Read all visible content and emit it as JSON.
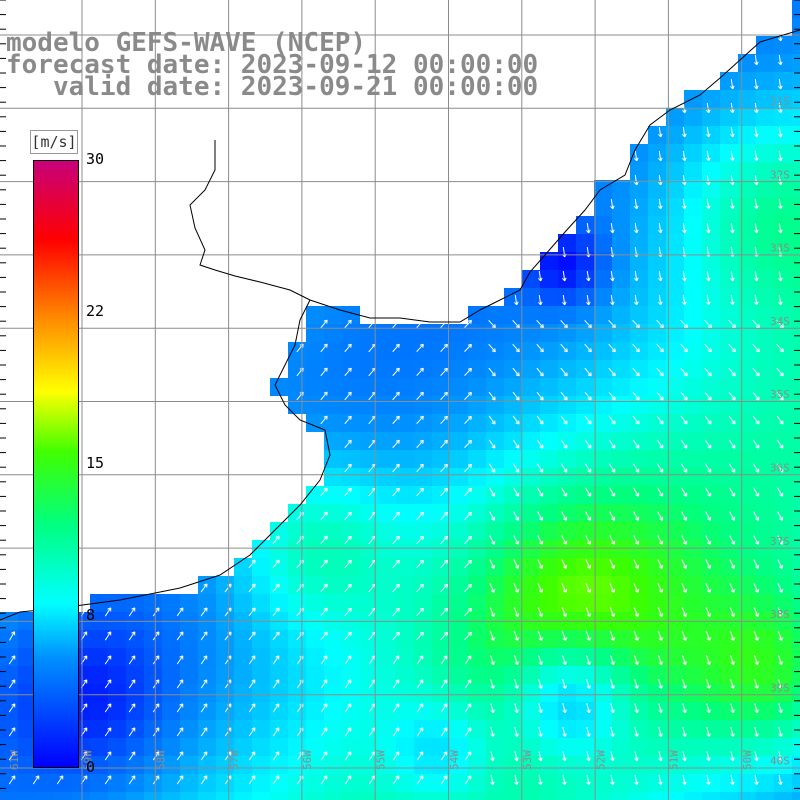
{
  "title": {
    "line1": "modelo GEFS-WAVE (NCEP)",
    "line2": "forecast date: 2023-09-12 00:00:00",
    "line3": "   valid date: 2023-09-21 00:00:00"
  },
  "colorbar": {
    "unit": "[m/s]",
    "ticks": [
      "30",
      "22",
      "15",
      "8",
      "0"
    ],
    "tick_values": [
      30,
      22,
      15,
      8,
      0
    ],
    "range": [
      0,
      30
    ],
    "colors": [
      "#0000ff",
      "#00b0ff",
      "#00ffff",
      "#00ff00",
      "#ffff00",
      "#ff7f00",
      "#ff0000",
      "#c0007a"
    ]
  },
  "map": {
    "lon_labels": [
      "61W",
      "59W",
      "58W",
      "57W",
      "56W",
      "55W",
      "54W",
      "53W",
      "52W",
      "51W",
      "50W"
    ],
    "lat_labels": [
      "31S",
      "32S",
      "33S",
      "34S",
      "35S",
      "36S",
      "37S",
      "38S",
      "39S",
      "40S"
    ],
    "land_color": "#ffffff",
    "grid_color": "#8c8c8c",
    "coast_color": "#000000",
    "arrow_color": "#ffffff"
  }
}
